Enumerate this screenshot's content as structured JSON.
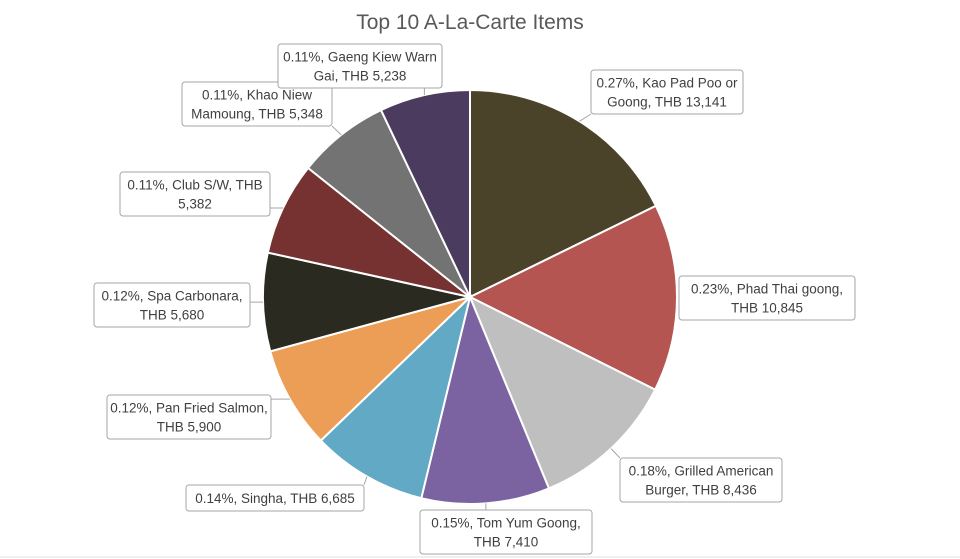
{
  "chart_data": {
    "type": "pie",
    "title": "Top 10 A-La-Carte Items",
    "legend": "none",
    "slices": [
      {
        "name": "Kao Pad Poo or Goong",
        "percent": "0.27%",
        "value": 13141,
        "label_lines": [
          "0.27%, Kao Pad Poo or",
          "Goong, THB 13,141"
        ],
        "color": "#4a4329"
      },
      {
        "name": "Phad Thai goong",
        "percent": "0.23%",
        "value": 10845,
        "label_lines": [
          "0.23%, Phad Thai goong,",
          "THB 10,845"
        ],
        "color": "#b55552"
      },
      {
        "name": "Grilled American Burger",
        "percent": "0.18%",
        "value": 8436,
        "label_lines": [
          "0.18%, Grilled American",
          "Burger, THB 8,436"
        ],
        "color": "#bfbfbf"
      },
      {
        "name": "Tom Yum Goong",
        "percent": "0.15%",
        "value": 7410,
        "label_lines": [
          "0.15%, Tom Yum Goong,",
          "THB 7,410"
        ],
        "color": "#7b62a0"
      },
      {
        "name": "Singha",
        "percent": "0.14%",
        "value": 6685,
        "label_lines": [
          "0.14%, Singha, THB 6,685"
        ],
        "color": "#62a9c6"
      },
      {
        "name": "Pan Fried Salmon",
        "percent": "0.12%",
        "value": 5900,
        "label_lines": [
          "0.12%, Pan Fried Salmon,",
          "THB 5,900"
        ],
        "color": "#ec9d56"
      },
      {
        "name": "Spa Carbonara",
        "percent": "0.12%",
        "value": 5680,
        "label_lines": [
          "0.12%, Spa Carbonara,",
          "THB 5,680"
        ],
        "color": "#2b2a20"
      },
      {
        "name": "Club S/W",
        "percent": "0.11%",
        "value": 5382,
        "label_lines": [
          "0.11%, Club S/W, THB",
          "5,382"
        ],
        "color": "#763230"
      },
      {
        "name": "Khao Niew Mamoung",
        "percent": "0.11%",
        "value": 5348,
        "label_lines": [
          "0.11%, Khao Niew",
          "Mamoung, THB 5,348"
        ],
        "color": "#737373"
      },
      {
        "name": "Gaeng Kiew Warn Gai",
        "percent": "0.11%",
        "value": 5238,
        "label_lines": [
          "0.11%, Gaeng Kiew Warn",
          "Gai, THB 5,238"
        ],
        "color": "#4b3b5e"
      }
    ]
  }
}
